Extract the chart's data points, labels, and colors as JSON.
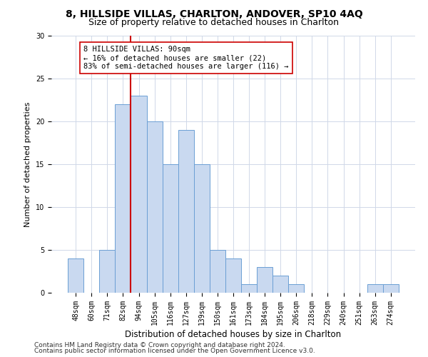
{
  "title1": "8, HILLSIDE VILLAS, CHARLTON, ANDOVER, SP10 4AQ",
  "title2": "Size of property relative to detached houses in Charlton",
  "xlabel": "Distribution of detached houses by size in Charlton",
  "ylabel": "Number of detached properties",
  "categories": [
    "48sqm",
    "60sqm",
    "71sqm",
    "82sqm",
    "94sqm",
    "105sqm",
    "116sqm",
    "127sqm",
    "139sqm",
    "150sqm",
    "161sqm",
    "173sqm",
    "184sqm",
    "195sqm",
    "206sqm",
    "218sqm",
    "229sqm",
    "240sqm",
    "251sqm",
    "263sqm",
    "274sqm"
  ],
  "values": [
    4,
    0,
    5,
    22,
    23,
    20,
    15,
    19,
    15,
    5,
    4,
    1,
    3,
    2,
    1,
    0,
    0,
    0,
    0,
    1,
    1
  ],
  "bar_color": "#c9d9f0",
  "bar_edge_color": "#6b9fd4",
  "vline_x_index": 3.5,
  "vline_color": "#cc0000",
  "annotation_line1": "8 HILLSIDE VILLAS: 90sqm",
  "annotation_line2": "← 16% of detached houses are smaller (22)",
  "annotation_line3": "83% of semi-detached houses are larger (116) →",
  "annotation_box_color": "#ffffff",
  "annotation_box_edge": "#cc0000",
  "ylim": [
    0,
    30
  ],
  "yticks": [
    0,
    5,
    10,
    15,
    20,
    25,
    30
  ],
  "footer1": "Contains HM Land Registry data © Crown copyright and database right 2024.",
  "footer2": "Contains public sector information licensed under the Open Government Licence v3.0.",
  "grid_color": "#d0d8e8",
  "title1_fontsize": 10,
  "title2_fontsize": 9,
  "xlabel_fontsize": 8.5,
  "ylabel_fontsize": 8,
  "tick_fontsize": 7,
  "annotation_fontsize": 7.5,
  "footer_fontsize": 6.5,
  "fig_width": 6.0,
  "fig_height": 5.0,
  "dpi": 100
}
